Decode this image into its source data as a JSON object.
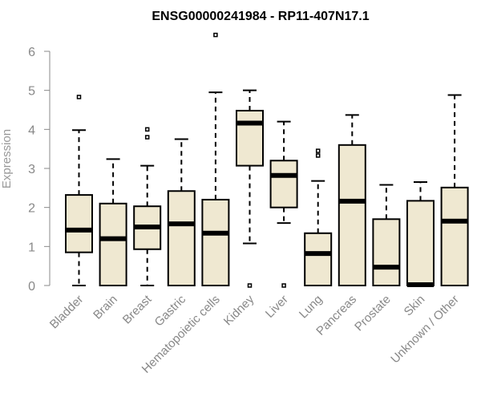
{
  "chart_data": {
    "type": "box",
    "title": "ENSG00000241984 - RP11-407N17.1",
    "xlabel": "",
    "ylabel": "Expression",
    "ylim": [
      0,
      6
    ],
    "yticks": [
      "0",
      "1",
      "2",
      "3",
      "4",
      "5",
      "6"
    ],
    "grid": false,
    "legend": "none",
    "colors": {
      "box_fill": "#efe8d1",
      "box_stroke": "#000000",
      "outlier": "#000000"
    },
    "categories": [
      "Bladder",
      "Brain",
      "Breast",
      "Gastric",
      "Hematopoietic cells",
      "Kidney",
      "Liver",
      "Lung",
      "Pancreas",
      "Prostate",
      "Skin",
      "Unknown / Other"
    ],
    "boxes": [
      {
        "category": "Bladder",
        "whisker_low": 0.0,
        "q1": 0.85,
        "median": 1.42,
        "q3": 2.32,
        "whisker_high": 3.98,
        "outliers": [
          4.83
        ]
      },
      {
        "category": "Brain",
        "whisker_low": 0.0,
        "q1": 0.0,
        "median": 1.2,
        "q3": 2.1,
        "whisker_high": 3.24,
        "outliers": []
      },
      {
        "category": "Breast",
        "whisker_low": 0.0,
        "q1": 0.93,
        "median": 1.5,
        "q3": 2.03,
        "whisker_high": 3.07,
        "outliers": [
          3.8,
          4.0
        ]
      },
      {
        "category": "Gastric",
        "whisker_low": 0.0,
        "q1": 0.0,
        "median": 1.58,
        "q3": 2.42,
        "whisker_high": 3.75,
        "outliers": []
      },
      {
        "category": "Hematopoietic cells",
        "whisker_low": 0.0,
        "q1": 0.0,
        "median": 1.34,
        "q3": 2.2,
        "whisker_high": 4.95,
        "outliers": [
          6.42
        ]
      },
      {
        "category": "Kidney",
        "whisker_low": 1.08,
        "q1": 3.07,
        "median": 4.16,
        "q3": 4.48,
        "whisker_high": 5.0,
        "outliers": [
          0.0
        ]
      },
      {
        "category": "Liver",
        "whisker_low": 1.6,
        "q1": 2.0,
        "median": 2.82,
        "q3": 3.2,
        "whisker_high": 4.2,
        "outliers": [
          0.0
        ]
      },
      {
        "category": "Lung",
        "whisker_low": 0.0,
        "q1": 0.0,
        "median": 0.82,
        "q3": 1.34,
        "whisker_high": 2.68,
        "outliers": [
          3.33,
          3.45
        ]
      },
      {
        "category": "Pancreas",
        "whisker_low": 0.0,
        "q1": 0.0,
        "median": 2.16,
        "q3": 3.6,
        "whisker_high": 4.37,
        "outliers": []
      },
      {
        "category": "Prostate",
        "whisker_low": 0.0,
        "q1": 0.0,
        "median": 0.47,
        "q3": 1.7,
        "whisker_high": 2.58,
        "outliers": []
      },
      {
        "category": "Skin",
        "whisker_low": 0.0,
        "q1": 0.0,
        "median": 0.02,
        "q3": 2.17,
        "whisker_high": 2.65,
        "outliers": []
      },
      {
        "category": "Unknown / Other",
        "whisker_low": 0.0,
        "q1": 0.0,
        "median": 1.65,
        "q3": 2.51,
        "whisker_high": 4.88,
        "outliers": []
      }
    ]
  }
}
